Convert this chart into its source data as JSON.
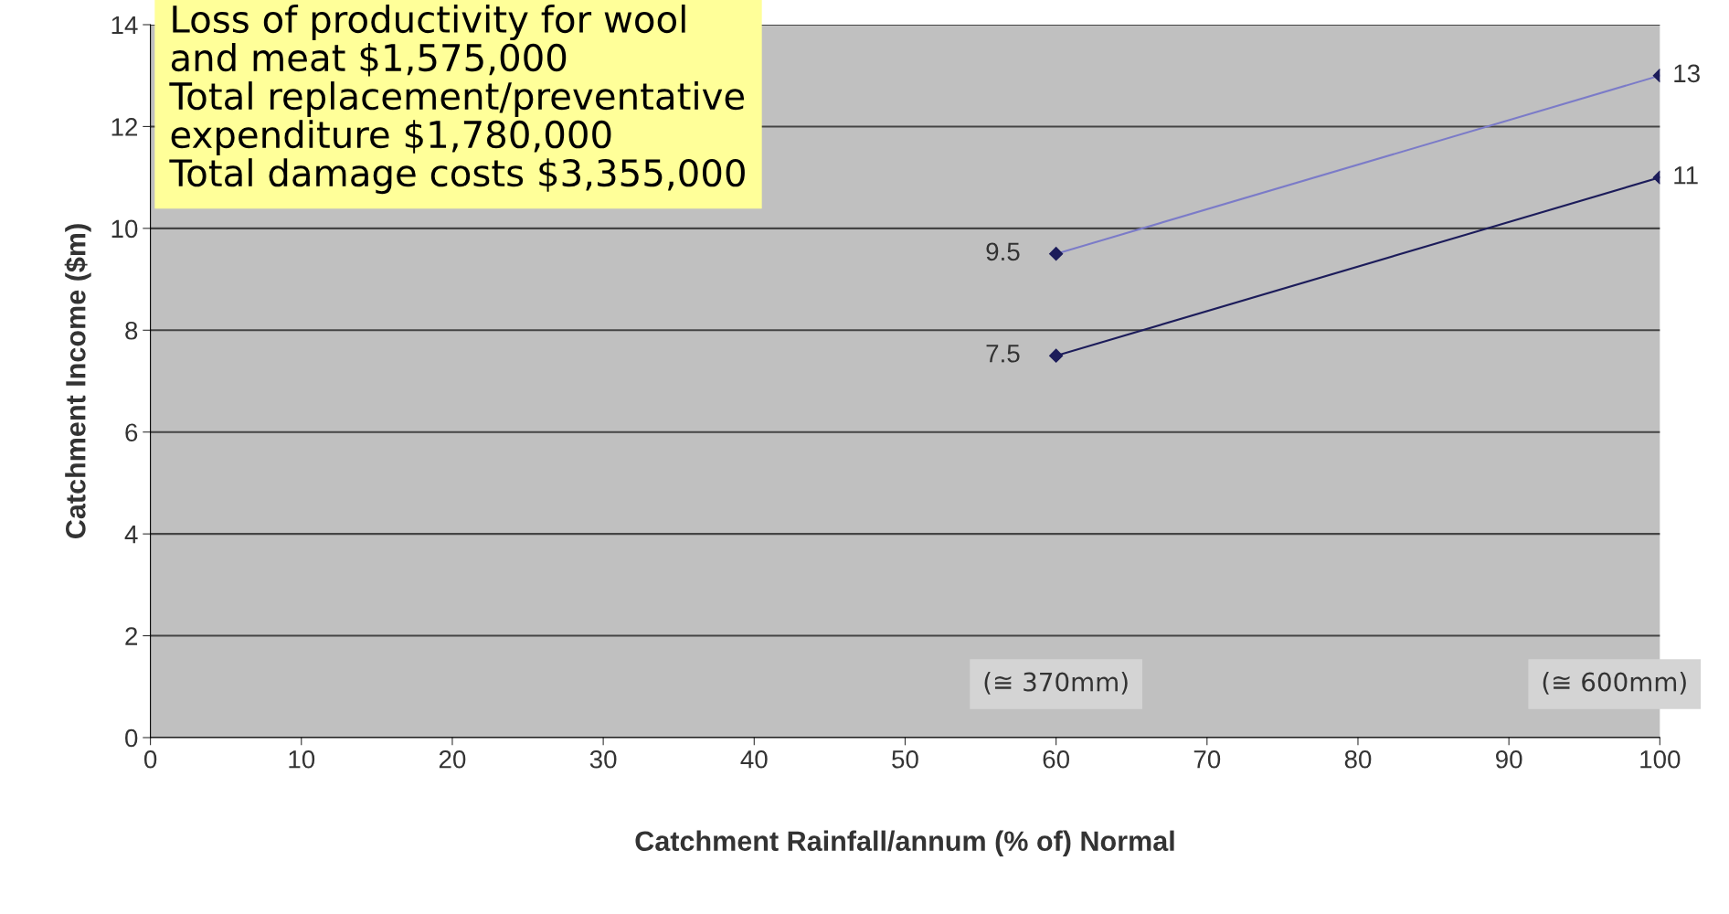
{
  "chart_data": {
    "type": "line",
    "xlabel": "Catchment Rainfall/annum (% of) Normal",
    "ylabel": "Catchment Income ($m)",
    "series": [
      {
        "values": [
          9.5,
          13
        ],
        "color": "#7b7bc8"
      },
      {
        "values": [
          7.5,
          11
        ],
        "color": "#1c1c5a"
      }
    ],
    "x": [
      60,
      100
    ],
    "marker": "diamond",
    "data_labels": true,
    "xlim": [
      0,
      100
    ],
    "xticks": [
      0,
      10,
      20,
      30,
      40,
      50,
      60,
      70,
      80,
      90,
      100
    ],
    "ylim": [
      0,
      14
    ],
    "yticks": [
      0,
      2,
      4,
      6,
      8,
      10,
      12,
      14
    ],
    "grid": "y",
    "annotations": [
      "Loss of productivity for wool\nand meat $1,575,000\nTotal replacement/preventative\nexpenditure $1,780,000\nTotal damage costs $3,355,000",
      "(≅ 370mm)",
      "(≅ 600mm)"
    ]
  }
}
